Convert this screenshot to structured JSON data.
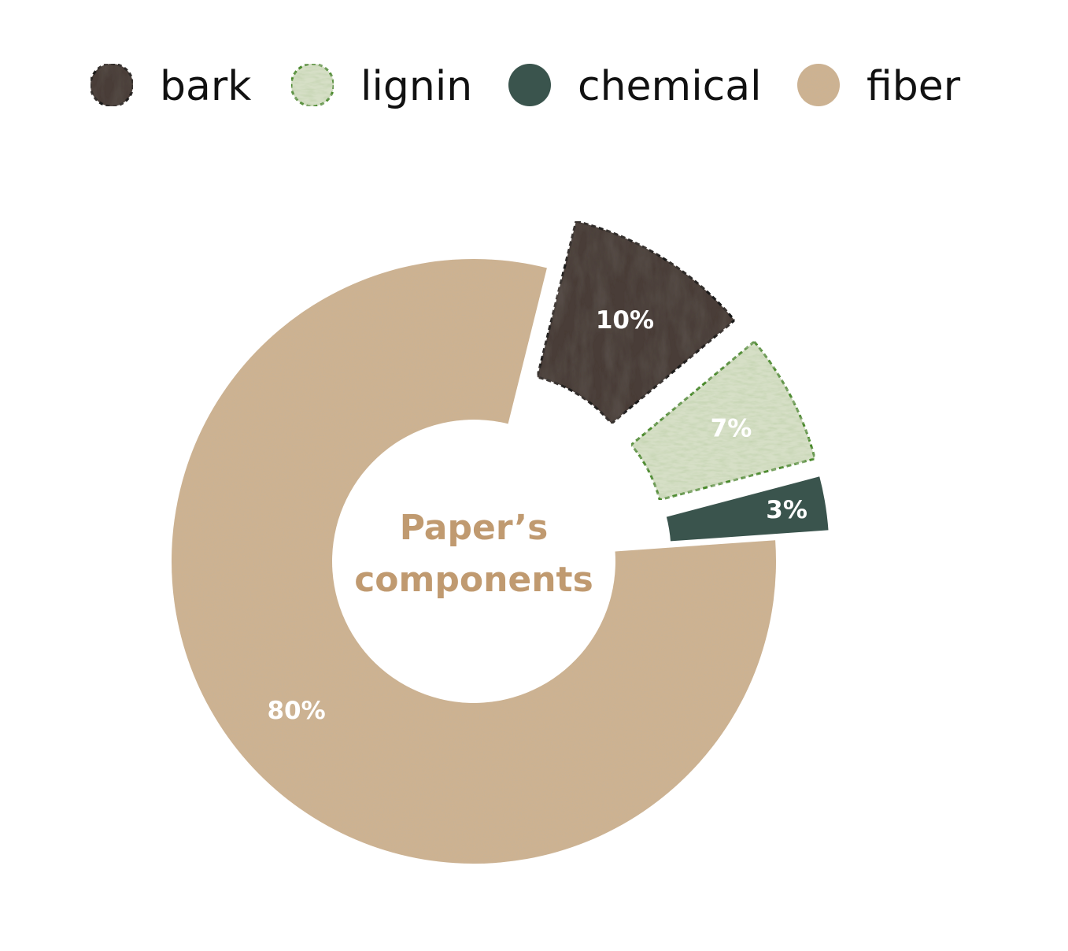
{
  "chart_data": {
    "type": "pie",
    "variant": "donut",
    "center_text": [
      "Paper’s",
      "components"
    ],
    "slices": [
      {
        "name": "bark",
        "value": 10,
        "label": "10%",
        "color": "#4a3e38",
        "exploded": true
      },
      {
        "name": "lignin",
        "value": 7,
        "label": "7%",
        "color": "#d6dfc6",
        "exploded": true
      },
      {
        "name": "chemical",
        "value": 3,
        "label": "3%",
        "color": "#3a544d",
        "exploded": true
      },
      {
        "name": "fiber",
        "value": 80,
        "label": "80%",
        "color": "#cdb291",
        "exploded": false
      }
    ],
    "legend": {
      "position": "top",
      "items": [
        "bark",
        "lignin",
        "chemical",
        "fiber"
      ]
    }
  },
  "colors": {
    "center_text": "#c09a70",
    "bark_outline": "#1a1a1a",
    "lignin_outline": "#4a8a2a"
  }
}
